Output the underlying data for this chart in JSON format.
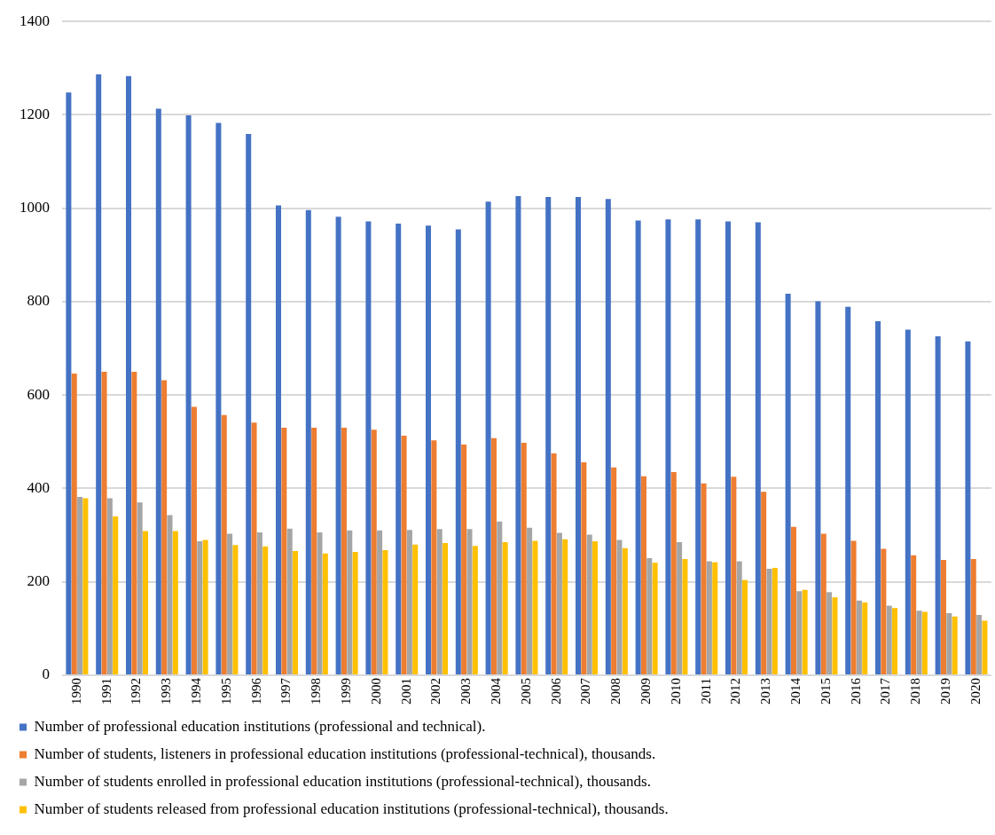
{
  "chart_data": {
    "type": "bar",
    "categories": [
      "1990",
      "1991",
      "1992",
      "1993",
      "1994",
      "1995",
      "1996",
      "1997",
      "1998",
      "1999",
      "2000",
      "2001",
      "2002",
      "2003",
      "2004",
      "2005",
      "2006",
      "2007",
      "2008",
      "2009",
      "2010",
      "2011",
      "2012",
      "2013",
      "2014",
      "2015",
      "2016",
      "2017",
      "2018",
      "2019",
      "2020"
    ],
    "series": [
      {
        "name": "Number of professional education institutions (professional and technical).",
        "color": "#4472c4",
        "values": [
          1248,
          1287,
          1283,
          1213,
          1199,
          1183,
          1159,
          1006,
          996,
          982,
          972,
          967,
          963,
          955,
          1014,
          1026,
          1024,
          1024,
          1020,
          974,
          976,
          976,
          972,
          970,
          817,
          801,
          789,
          758,
          740,
          726,
          715
        ]
      },
      {
        "name": "Number of students, listeners in professional education institutions (professional-technical), thousands.",
        "color": "#ed7d31",
        "values": [
          646,
          650,
          650,
          632,
          575,
          557,
          541,
          530,
          530,
          530,
          526,
          513,
          503,
          494,
          508,
          498,
          475,
          456,
          445,
          426,
          435,
          411,
          425,
          393,
          318,
          303,
          288,
          271,
          257,
          247,
          249
        ]
      },
      {
        "name": "Number of students enrolled in professional education institutions (professional-technical), thousands.",
        "color": "#a5a5a5",
        "values": [
          382,
          379,
          370,
          343,
          287,
          303,
          306,
          314,
          306,
          310,
          310,
          311,
          313,
          313,
          329,
          316,
          305,
          301,
          290,
          251,
          285,
          244,
          244,
          228,
          180,
          178,
          160,
          149,
          138,
          133,
          129
        ]
      },
      {
        "name": "Number of students released from professional education institutions (professional-technical), thousands.",
        "color": "#ffc000",
        "values": [
          379,
          340,
          309,
          309,
          290,
          279,
          276,
          266,
          261,
          264,
          268,
          280,
          283,
          277,
          285,
          288,
          291,
          287,
          272,
          241,
          249,
          242,
          204,
          230,
          183,
          167,
          156,
          144,
          136,
          126,
          117
        ]
      }
    ],
    "ylim": [
      0,
      1400
    ],
    "yticks": [
      0,
      200,
      400,
      600,
      800,
      1000,
      1200,
      1400
    ],
    "grid": "y",
    "legend": "bottom"
  }
}
